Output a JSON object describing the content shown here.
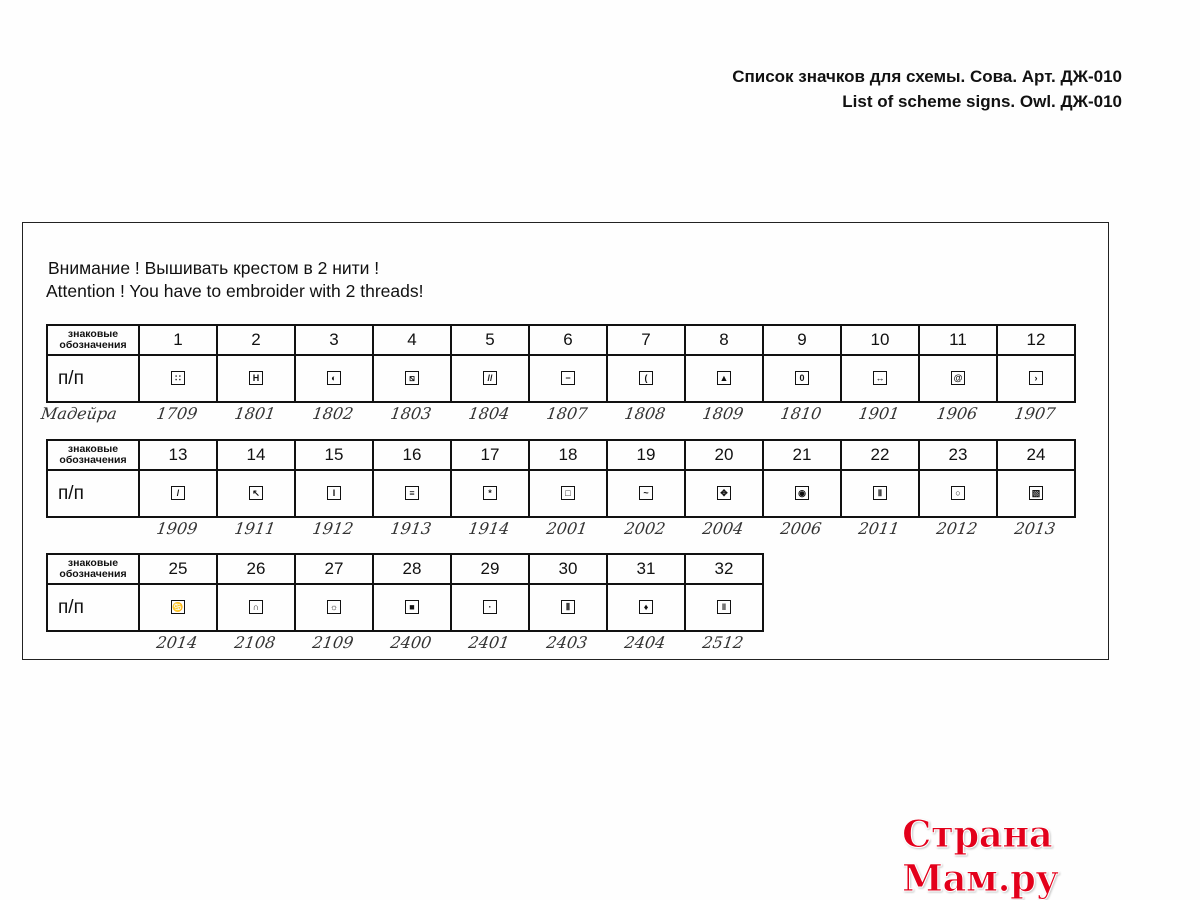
{
  "header": {
    "title_ru": "Список значков для схемы.  Сова.  Арт. ДЖ-010",
    "title_en": "List of scheme signs.  Owl.  ДЖ-010"
  },
  "notice": {
    "ru": "Внимание ! Вышивать крестом в 2 нити !",
    "en": "Attention !  You have to embroider with 2 threads!"
  },
  "table": {
    "label_signs": "знаковые обозначения",
    "label_pp": "п/п",
    "brand": "Мадейра",
    "rows": [
      [
        {
          "n": "1",
          "symbol": "four-dots",
          "code": "1709"
        },
        {
          "n": "2",
          "symbol": "letter-h",
          "code": "1801"
        },
        {
          "n": "3",
          "symbol": "moon-dark",
          "code": "1802"
        },
        {
          "n": "4",
          "symbol": "diagonal-lines",
          "code": "1803"
        },
        {
          "n": "5",
          "symbol": "double-slash",
          "code": "1804"
        },
        {
          "n": "6",
          "symbol": "horizontal-bar",
          "code": "1807"
        },
        {
          "n": "7",
          "symbol": "crescent",
          "code": "1808"
        },
        {
          "n": "8",
          "symbol": "triangle",
          "code": "1809"
        },
        {
          "n": "9",
          "symbol": "leaf",
          "code": "1810"
        },
        {
          "n": "10",
          "symbol": "two-dots",
          "code": "1901"
        },
        {
          "n": "11",
          "symbol": "spiral",
          "code": "1906"
        },
        {
          "n": "12",
          "symbol": "chevron-right",
          "code": "1907"
        }
      ],
      [
        {
          "n": "13",
          "symbol": "slash",
          "code": "1909"
        },
        {
          "n": "14",
          "symbol": "arrow-corner",
          "code": "1911"
        },
        {
          "n": "15",
          "symbol": "i-beam",
          "code": "1912"
        },
        {
          "n": "16",
          "symbol": "double-bar",
          "code": "1913"
        },
        {
          "n": "17",
          "symbol": "asterisk",
          "code": "1914"
        },
        {
          "n": "18",
          "symbol": "inner-square",
          "code": "2001"
        },
        {
          "n": "19",
          "symbol": "tilde",
          "code": "2002"
        },
        {
          "n": "20",
          "symbol": "four-arrows",
          "code": "2004"
        },
        {
          "n": "21",
          "symbol": "target",
          "code": "2006"
        },
        {
          "n": "22",
          "symbol": "pillars",
          "code": "2011"
        },
        {
          "n": "23",
          "symbol": "circle",
          "code": "2012"
        },
        {
          "n": "24",
          "symbol": "hatched",
          "code": "2013"
        }
      ],
      [
        {
          "n": "25",
          "symbol": "cancer",
          "code": "2014"
        },
        {
          "n": "26",
          "symbol": "u-turn",
          "code": "2108"
        },
        {
          "n": "27",
          "symbol": "sun",
          "code": "2109"
        },
        {
          "n": "28",
          "symbol": "filled-square",
          "code": "2400"
        },
        {
          "n": "29",
          "symbol": "center-dot",
          "code": "2401"
        },
        {
          "n": "30",
          "symbol": "triple-bar",
          "code": "2403"
        },
        {
          "n": "31",
          "symbol": "diamond",
          "code": "2404"
        },
        {
          "n": "32",
          "symbol": "double-vertical",
          "code": "2512"
        }
      ]
    ]
  },
  "watermark": "Страна Мам.ру"
}
